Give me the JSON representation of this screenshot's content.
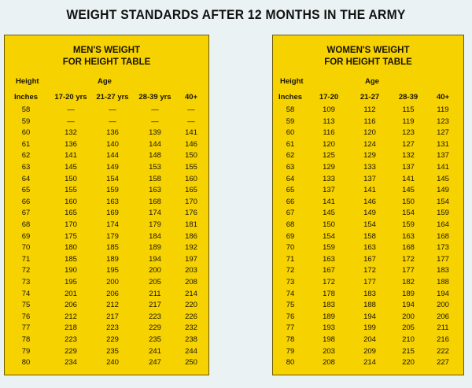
{
  "title": "WEIGHT STANDARDS AFTER 12 MONTHS IN THE ARMY",
  "men": {
    "title_line1": "MEN'S WEIGHT",
    "title_line2": "FOR HEIGHT TABLE",
    "height_label": "Height",
    "age_label": "Age",
    "columns": [
      "Inches",
      "17-20 yrs",
      "21-27 yrs",
      "28-39 yrs",
      "40+"
    ],
    "rows": [
      [
        "58",
        "—",
        "—",
        "—",
        "—"
      ],
      [
        "59",
        "—",
        "—",
        "—",
        "—"
      ],
      [
        "60",
        "132",
        "136",
        "139",
        "141"
      ],
      [
        "61",
        "136",
        "140",
        "144",
        "146"
      ],
      [
        "62",
        "141",
        "144",
        "148",
        "150"
      ],
      [
        "63",
        "145",
        "149",
        "153",
        "155"
      ],
      [
        "64",
        "150",
        "154",
        "158",
        "160"
      ],
      [
        "65",
        "155",
        "159",
        "163",
        "165"
      ],
      [
        "66",
        "160",
        "163",
        "168",
        "170"
      ],
      [
        "67",
        "165",
        "169",
        "174",
        "176"
      ],
      [
        "68",
        "170",
        "174",
        "179",
        "181"
      ],
      [
        "69",
        "175",
        "179",
        "184",
        "186"
      ],
      [
        "70",
        "180",
        "185",
        "189",
        "192"
      ],
      [
        "71",
        "185",
        "189",
        "194",
        "197"
      ],
      [
        "72",
        "190",
        "195",
        "200",
        "203"
      ],
      [
        "73",
        "195",
        "200",
        "205",
        "208"
      ],
      [
        "74",
        "201",
        "206",
        "211",
        "214"
      ],
      [
        "75",
        "206",
        "212",
        "217",
        "220"
      ],
      [
        "76",
        "212",
        "217",
        "223",
        "226"
      ],
      [
        "77",
        "218",
        "223",
        "229",
        "232"
      ],
      [
        "78",
        "223",
        "229",
        "235",
        "238"
      ],
      [
        "79",
        "229",
        "235",
        "241",
        "244"
      ],
      [
        "80",
        "234",
        "240",
        "247",
        "250"
      ]
    ]
  },
  "women": {
    "title_line1": "WOMEN'S WEIGHT",
    "title_line2": "FOR HEIGHT TABLE",
    "height_label": "Height",
    "age_label": "Age",
    "columns": [
      "Inches",
      "17-20",
      "21-27",
      "28-39",
      "40+"
    ],
    "rows": [
      [
        "58",
        "109",
        "112",
        "115",
        "119"
      ],
      [
        "59",
        "113",
        "116",
        "119",
        "123"
      ],
      [
        "60",
        "116",
        "120",
        "123",
        "127"
      ],
      [
        "61",
        "120",
        "124",
        "127",
        "131"
      ],
      [
        "62",
        "125",
        "129",
        "132",
        "137"
      ],
      [
        "63",
        "129",
        "133",
        "137",
        "141"
      ],
      [
        "64",
        "133",
        "137",
        "141",
        "145"
      ],
      [
        "65",
        "137",
        "141",
        "145",
        "149"
      ],
      [
        "66",
        "141",
        "146",
        "150",
        "154"
      ],
      [
        "67",
        "145",
        "149",
        "154",
        "159"
      ],
      [
        "68",
        "150",
        "154",
        "159",
        "164"
      ],
      [
        "69",
        "154",
        "158",
        "163",
        "168"
      ],
      [
        "70",
        "159",
        "163",
        "168",
        "173"
      ],
      [
        "71",
        "163",
        "167",
        "172",
        "177"
      ],
      [
        "72",
        "167",
        "172",
        "177",
        "183"
      ],
      [
        "73",
        "172",
        "177",
        "182",
        "188"
      ],
      [
        "74",
        "178",
        "183",
        "189",
        "194"
      ],
      [
        "75",
        "183",
        "188",
        "194",
        "200"
      ],
      [
        "76",
        "189",
        "194",
        "200",
        "206"
      ],
      [
        "77",
        "193",
        "199",
        "205",
        "211"
      ],
      [
        "78",
        "198",
        "204",
        "210",
        "216"
      ],
      [
        "79",
        "203",
        "209",
        "215",
        "222"
      ],
      [
        "80",
        "208",
        "214",
        "220",
        "227"
      ]
    ]
  }
}
